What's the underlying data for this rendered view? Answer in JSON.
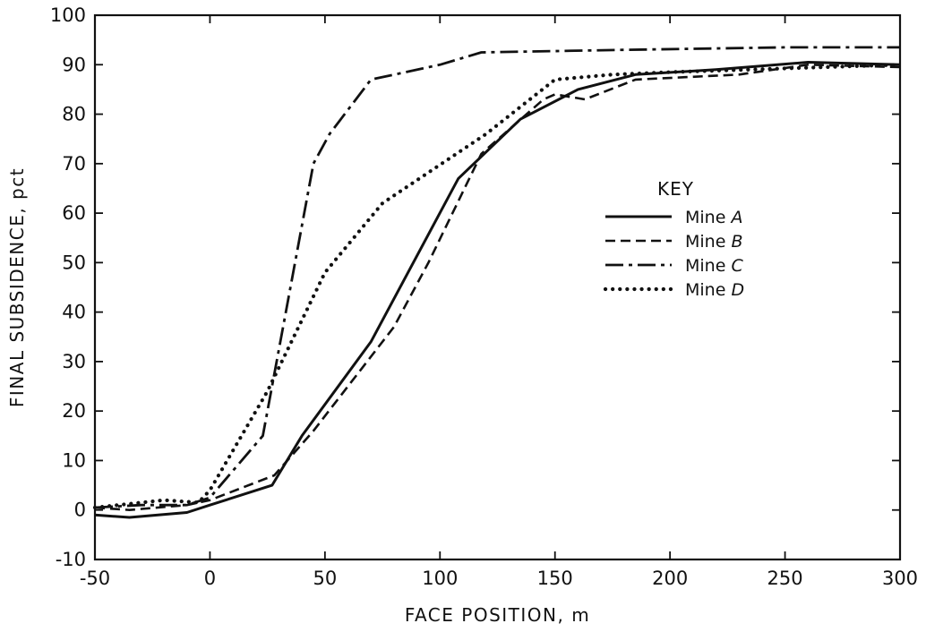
{
  "chart_data": {
    "type": "line",
    "xlabel": "FACE POSITION, m",
    "ylabel": "FINAL SUBSIDENCE, pct",
    "xlim": [
      -50,
      300
    ],
    "ylim": [
      -10,
      100
    ],
    "xticks": [
      -50,
      0,
      50,
      100,
      150,
      200,
      250,
      300
    ],
    "xtick_labels": [
      "-50",
      "0",
      "50",
      "100",
      "150",
      "200",
      "250",
      "300"
    ],
    "yticks": [
      -10,
      0,
      10,
      20,
      30,
      40,
      50,
      60,
      70,
      80,
      90,
      100
    ],
    "ytick_labels": [
      "-10",
      "0",
      "10",
      "20",
      "30",
      "40",
      "50",
      "60",
      "70",
      "80",
      "90",
      "100"
    ],
    "grid": false,
    "legend": {
      "title": "KEY",
      "placement": "center-right"
    },
    "series": [
      {
        "name": "Mine A",
        "prefix": "Mine ",
        "letter": "A",
        "style": "solid",
        "x": [
          -50,
          -35,
          -10,
          0,
          27,
          40,
          70,
          108,
          135,
          160,
          185,
          220,
          260,
          300
        ],
        "y": [
          -1,
          -1.5,
          -0.5,
          1,
          5,
          15,
          34,
          67,
          79,
          85,
          88,
          89,
          90.5,
          90
        ]
      },
      {
        "name": "Mine B",
        "prefix": "Mine ",
        "letter": "B",
        "style": "dashed",
        "x": [
          -50,
          -35,
          -10,
          0,
          28,
          45,
          80,
          95,
          118,
          145,
          150,
          163,
          185,
          230,
          260,
          300
        ],
        "y": [
          0.5,
          0,
          1,
          2,
          7,
          16,
          37,
          50,
          72,
          83,
          84,
          83,
          87,
          88,
          90,
          89.5
        ]
      },
      {
        "name": "Mine C",
        "prefix": "Mine ",
        "letter": "C",
        "style": "dashdot",
        "x": [
          -50,
          -30,
          -10,
          0,
          23,
          45,
          52,
          70,
          100,
          118,
          180,
          250,
          300
        ],
        "y": [
          0.5,
          1,
          1,
          2.5,
          15,
          70,
          76,
          87,
          90,
          92.5,
          93,
          93.5,
          93.5
        ]
      },
      {
        "name": "Mine D",
        "prefix": "Mine ",
        "letter": "D",
        "style": "dotted",
        "x": [
          -50,
          -20,
          -5,
          0,
          25,
          50,
          75,
          120,
          150,
          175,
          200,
          300
        ],
        "y": [
          0.5,
          2,
          1.5,
          4,
          24,
          48,
          62,
          76,
          87,
          88,
          88.5,
          90
        ]
      }
    ]
  }
}
